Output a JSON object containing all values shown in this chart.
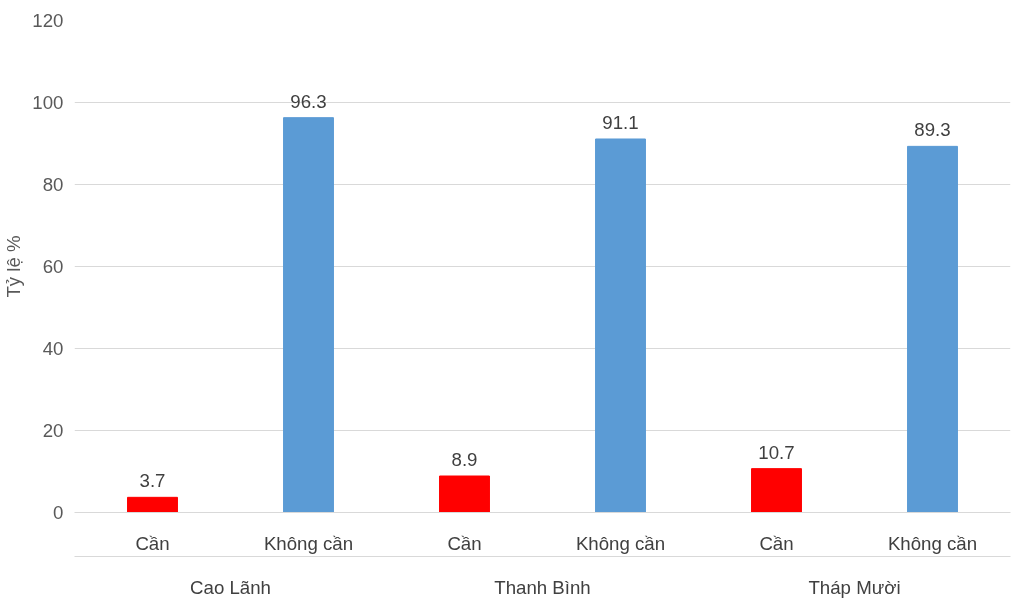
{
  "chart_data": {
    "type": "bar",
    "ylabel": "Tỷ lệ %",
    "categories": [
      "Cần",
      "Không cần",
      "Cần",
      "Không cần",
      "Cần",
      "Không cần"
    ],
    "values": [
      3.7,
      96.3,
      8.9,
      91.1,
      10.7,
      89.3
    ],
    "colors": [
      "#ff0000",
      "#5b9bd5",
      "#ff0000",
      "#5b9bd5",
      "#ff0000",
      "#5b9bd5"
    ],
    "annotations": [
      "Cao Lãnh",
      "Thanh Bình",
      "Tháp Mười"
    ],
    "ylim": [
      0,
      120
    ],
    "yticks": [
      0,
      20,
      40,
      60,
      80,
      100,
      120
    ],
    "grid": "y",
    "data_labels": true
  }
}
